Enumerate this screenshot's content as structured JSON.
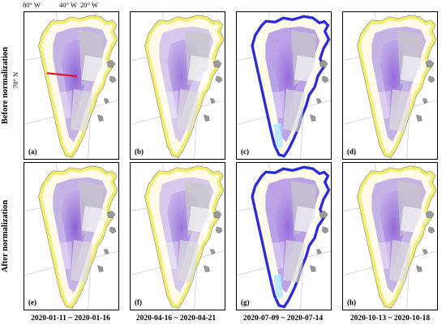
{
  "row_labels": [
    "Before normalization",
    "After normalization"
  ],
  "coords": {
    "lon_80": "80° W",
    "lon_40": "40° W",
    "lon_20": "20° W",
    "lat_70": "70° N"
  },
  "panels": [
    {
      "label": "(a)",
      "style": "winter",
      "transect": true
    },
    {
      "label": "(b)",
      "style": "spring",
      "transect": false
    },
    {
      "label": "(c)",
      "style": "summer",
      "transect": false
    },
    {
      "label": "(d)",
      "style": "autumn",
      "transect": false
    },
    {
      "label": "(e)",
      "style": "winter",
      "transect": false
    },
    {
      "label": "(f)",
      "style": "spring",
      "transect": false
    },
    {
      "label": "(g)",
      "style": "summer",
      "transect": false
    },
    {
      "label": "(h)",
      "style": "autumn",
      "transect": false
    }
  ],
  "dates": [
    "2020-01-11 ~ 2020-01-16",
    "2020-04-16 ~ 2020-04-21",
    "2020-07-09 ~ 2020-07-14",
    "2020-10-13 ~ 2020-10-18"
  ],
  "colors": {
    "ice_purple": "#8a5cd6",
    "ice_lavender": "#c8b8ec",
    "margin_yellow": "#f2ec6a",
    "melt_blue": "#1f1ee8",
    "swath_gray": "#c8c8c8",
    "transect_red": "#e0142a"
  }
}
